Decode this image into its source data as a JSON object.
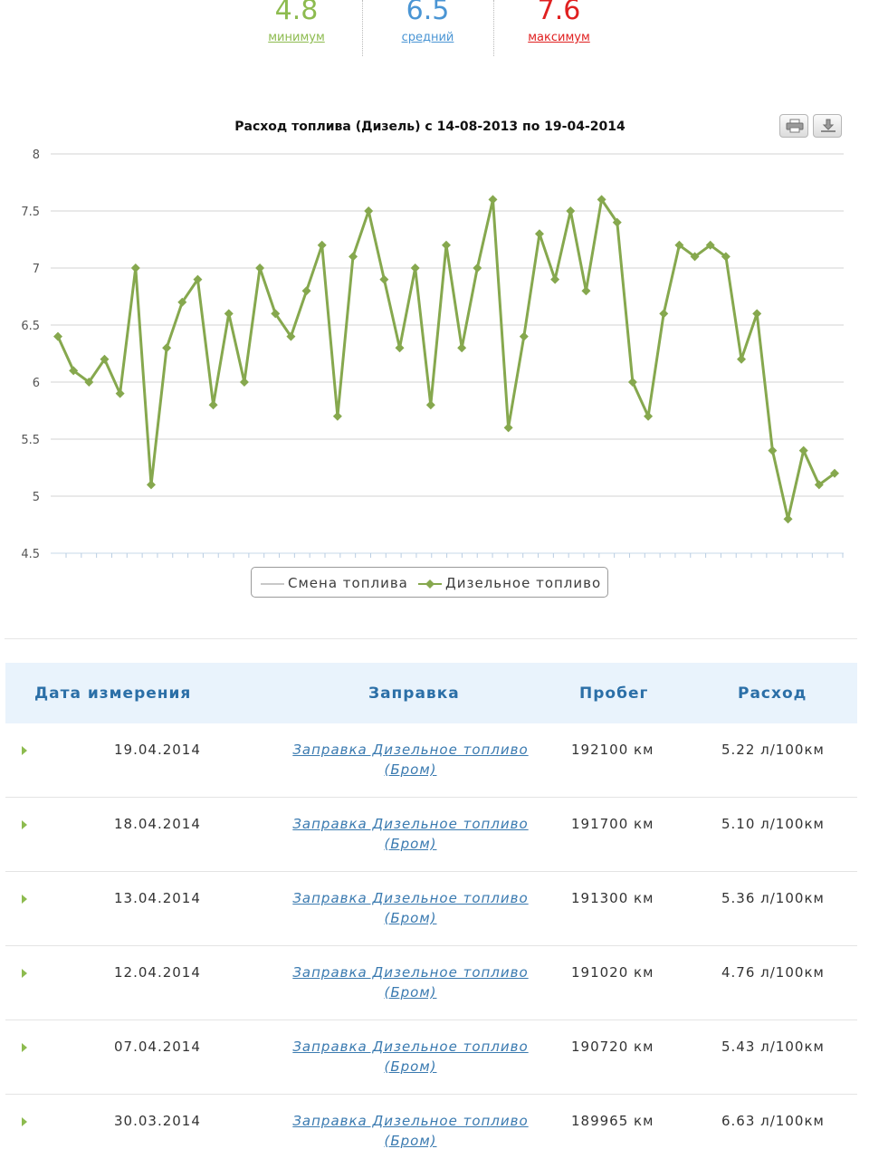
{
  "stats": {
    "min": {
      "value": "4.8",
      "label": "минимум",
      "color": "#8dbb4f"
    },
    "avg": {
      "value": "6.5",
      "label": "средний",
      "color": "#4a95d4"
    },
    "max": {
      "value": "7.6",
      "label": "максимум",
      "color": "#e02020"
    }
  },
  "chart": {
    "toolbar": {
      "print_icon": "print-icon",
      "download_icon": "download-icon"
    }
  },
  "chart_data": {
    "type": "line",
    "title": "Расход топлива (Дизель) с 14-08-2013 по 19-04-2014",
    "xlabel": "",
    "ylabel": "",
    "ylim": [
      4.5,
      8
    ],
    "yticks": [
      "4.5",
      "5",
      "5.5",
      "6",
      "6.5",
      "7",
      "7.5",
      "8"
    ],
    "grid": true,
    "legend_position": "bottom",
    "legend": [
      "Смена топлива",
      "Дизельное топливо"
    ],
    "series": [
      {
        "name": "Дизельное топливо",
        "color": "#86a84e",
        "values": [
          6.4,
          6.1,
          6.0,
          6.2,
          5.9,
          7.0,
          5.1,
          6.3,
          6.7,
          6.9,
          5.8,
          6.6,
          6.0,
          7.0,
          6.6,
          6.4,
          6.8,
          7.2,
          5.7,
          7.1,
          7.5,
          6.9,
          6.3,
          7.0,
          5.8,
          7.2,
          6.3,
          7.0,
          7.6,
          5.6,
          6.4,
          7.3,
          6.9,
          7.5,
          6.8,
          7.6,
          7.4,
          6.0,
          5.7,
          6.6,
          7.2,
          7.1,
          7.2,
          7.1,
          6.2,
          6.6,
          5.4,
          4.8,
          5.4,
          5.1,
          5.2
        ]
      },
      {
        "name": "Смена топлива",
        "color": "#c8c8c8",
        "values": []
      }
    ]
  },
  "table": {
    "headers": [
      "Дата измерения",
      "Заправка",
      "Пробег",
      "Расход"
    ],
    "rows": [
      {
        "date": "19.04.2014",
        "link_line1": "Заправка Дизельное топливо",
        "link_line2": "(Бром)",
        "mileage": "192100 км",
        "rate": "5.22 л/100км"
      },
      {
        "date": "18.04.2014",
        "link_line1": "Заправка Дизельное топливо",
        "link_line2": "(Бром)",
        "mileage": "191700 км",
        "rate": "5.10 л/100км"
      },
      {
        "date": "13.04.2014",
        "link_line1": "Заправка Дизельное топливо",
        "link_line2": "(Бром)",
        "mileage": "191300 км",
        "rate": "5.36 л/100км"
      },
      {
        "date": "12.04.2014",
        "link_line1": "Заправка Дизельное топливо",
        "link_line2": "(Бром)",
        "mileage": "191020 км",
        "rate": "4.76 л/100км"
      },
      {
        "date": "07.04.2014",
        "link_line1": "Заправка Дизельное топливо",
        "link_line2": "(Бром)",
        "mileage": "190720 км",
        "rate": "5.43 л/100км"
      },
      {
        "date": "30.03.2014",
        "link_line1": "Заправка Дизельное топливо",
        "link_line2": "(Бром)",
        "mileage": "189965 км",
        "rate": "6.63 л/100км"
      }
    ]
  }
}
